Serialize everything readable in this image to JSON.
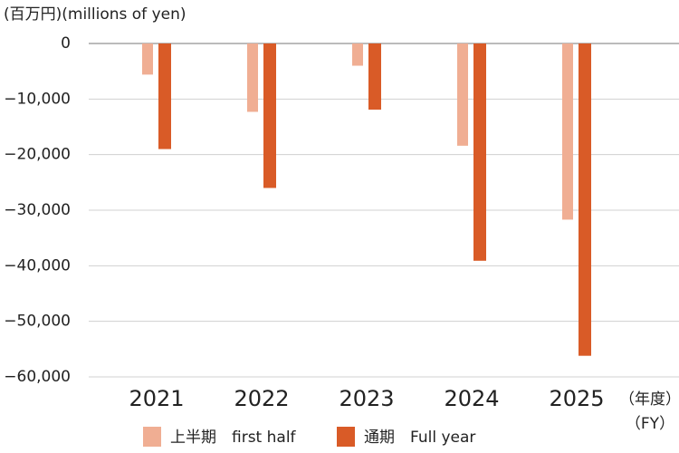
{
  "chart_data": {
    "type": "bar",
    "y_label": "(百万円)(millions of yen)",
    "x_label": [
      "（年度）",
      "（FY）"
    ],
    "categories": [
      "2021",
      "2022",
      "2023",
      "2024",
      "2025"
    ],
    "series": [
      {
        "name": "上半期　first half",
        "color": "#f0ae93",
        "values": [
          -5600,
          -12300,
          -4000,
          -18400,
          -31700
        ]
      },
      {
        "name": "通期　Full year",
        "color": "#d95b27",
        "values": [
          -19000,
          -26000,
          -11900,
          -39100,
          -56200
        ]
      }
    ],
    "ylim": [
      -60000,
      0
    ],
    "yticks": [
      {
        "value": 0,
        "label": "0"
      },
      {
        "value": -10000,
        "label": "−10,000"
      },
      {
        "value": -20000,
        "label": "−20,000"
      },
      {
        "value": -30000,
        "label": "−30,000"
      },
      {
        "value": -40000,
        "label": "−40,000"
      },
      {
        "value": -50000,
        "label": "−50,000"
      },
      {
        "value": -60000,
        "label": "−60,000"
      }
    ],
    "grid": true
  }
}
